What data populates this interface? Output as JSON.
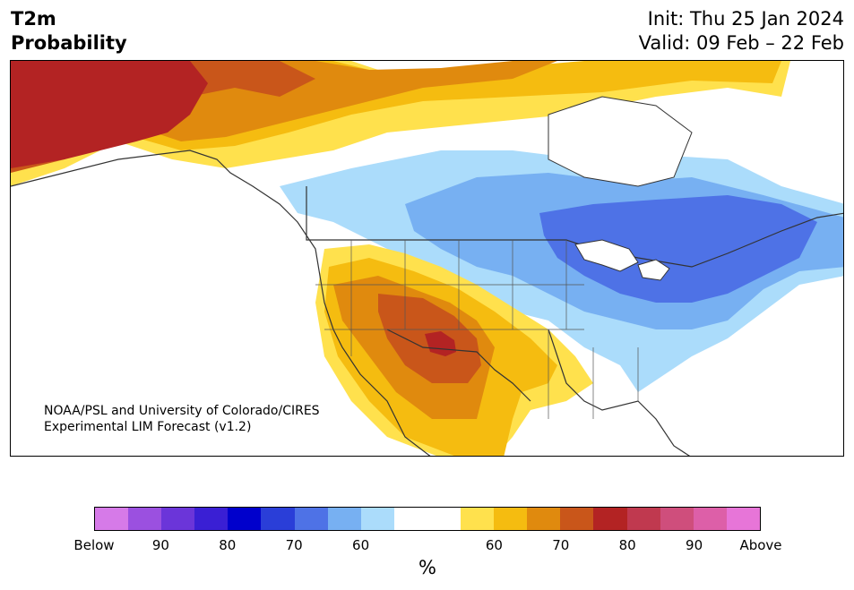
{
  "header": {
    "variable": "T2m",
    "product": "Probability",
    "init": "Init: Thu 25 Jan 2024",
    "valid": "Valid: 09 Feb – 22 Feb"
  },
  "credit": {
    "line1": "NOAA/PSL and University of Colorado/CIRES",
    "line2": "Experimental LIM Forecast (v1.2)"
  },
  "colorbar": {
    "unit": "%",
    "colors": [
      "#d67ae8",
      "#9b50e0",
      "#6b35d9",
      "#3a1fd4",
      "#0000cc",
      "#2a3ed8",
      "#4e72e6",
      "#77b0f2",
      "#abdcfb",
      "#ffffff",
      "#ffffff",
      "#ffe14d",
      "#f5bc10",
      "#e08a0e",
      "#c9561a",
      "#b32323",
      "#c0394f",
      "#cf4e7c",
      "#dd5fa8",
      "#e775d8"
    ],
    "tick_labels": [
      "Below",
      "90",
      "80",
      "70",
      "60",
      "60",
      "70",
      "80",
      "90",
      "Above"
    ]
  },
  "map": {
    "region": "North America",
    "palette": {
      "ocean": "#ffffff",
      "land_neutral": "#ffffff",
      "below_50": "#abdcfb",
      "below_60": "#77b0f2",
      "below_70": "#4e72e6",
      "above_50": "#ffe14d",
      "above_60": "#f5bc10",
      "above_70": "#e08a0e",
      "above_80": "#c9561a",
      "above_90": "#b32323",
      "borders": "#333333"
    }
  }
}
